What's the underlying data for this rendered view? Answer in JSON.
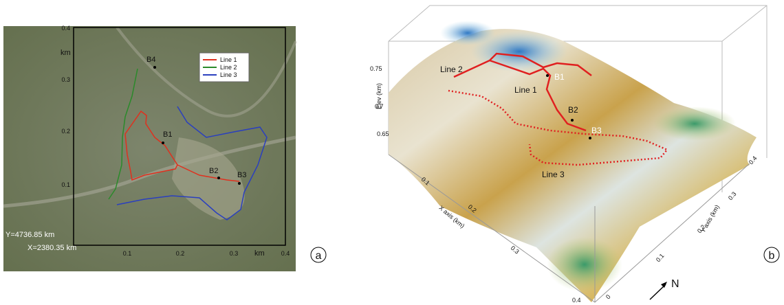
{
  "panel_a": {
    "label": "a",
    "y_ticks": [
      "0.4",
      "0.3",
      "0.2",
      "0.1"
    ],
    "x_ticks": [
      "0.1",
      "0.2",
      "0.3",
      "0.4"
    ],
    "y_unit": "km",
    "x_unit": "km",
    "origin_y": "Y=4736.85 km",
    "origin_x": "X=2380.35 km",
    "legend": [
      "Line 1",
      "Line 2",
      "Line 3"
    ],
    "points": [
      "B4",
      "B1",
      "B2",
      "B3"
    ]
  },
  "panel_b": {
    "label": "b",
    "z_title": "Elev (km)",
    "z_ticks": [
      "0.75",
      "0.7",
      "0.65"
    ],
    "x_title": "X axis (km)",
    "x_ticks": [
      "0.1",
      "0.2",
      "0.3",
      "0.4"
    ],
    "y_title": "Y axis (km)",
    "y_ticks": [
      "0",
      "0.1",
      "0.2",
      "0.3",
      "0.4"
    ],
    "line_labels": [
      "Line 2",
      "Line 1",
      "Line 3"
    ],
    "points": [
      "B1",
      "B2",
      "B3"
    ],
    "north": "N"
  }
}
